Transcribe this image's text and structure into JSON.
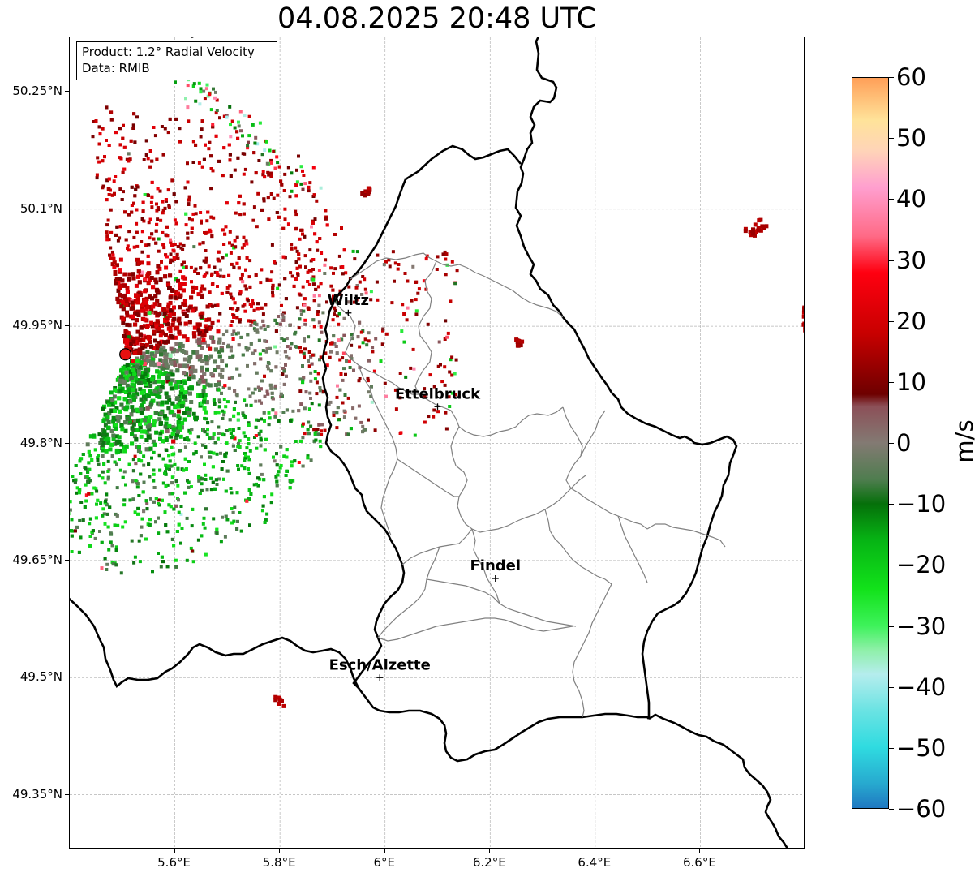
{
  "title": "04.08.2025 20:48 UTC",
  "info": {
    "product": "Product: 1.2° Radial Velocity",
    "data": "Data: RMIB"
  },
  "map_extent": {
    "lon": [
      5.4,
      6.8
    ],
    "lat": [
      49.28,
      50.32
    ]
  },
  "lat_ticks": [
    {
      "value": 50.25,
      "label": "50.25°N"
    },
    {
      "value": 50.1,
      "label": "50.1°N"
    },
    {
      "value": 49.95,
      "label": "49.95°N"
    },
    {
      "value": 49.8,
      "label": "49.8°N"
    },
    {
      "value": 49.65,
      "label": "49.65°N"
    },
    {
      "value": 49.5,
      "label": "49.5°N"
    },
    {
      "value": 49.35,
      "label": "49.35°N"
    }
  ],
  "lon_ticks": [
    {
      "value": 5.6,
      "label": "5.6°E"
    },
    {
      "value": 5.8,
      "label": "5.8°E"
    },
    {
      "value": 6.0,
      "label": "6°E"
    },
    {
      "value": 6.2,
      "label": "6.2°E"
    },
    {
      "value": 6.4,
      "label": "6.4°E"
    },
    {
      "value": 6.6,
      "label": "6.6°E"
    }
  ],
  "cities": [
    {
      "name": "Wiltz",
      "lon": 5.93,
      "lat": 49.967
    },
    {
      "name": "Ettelbruck",
      "lon": 6.1,
      "lat": 49.847
    },
    {
      "name": "Findel",
      "lon": 6.21,
      "lat": 49.627
    },
    {
      "name": "Esch/Alzette",
      "lon": 5.99,
      "lat": 49.5
    }
  ],
  "radar_site": {
    "lon": 5.506,
    "lat": 49.914
  },
  "colorbar": {
    "unit": "m/s",
    "min": -60,
    "max": 60,
    "ticks": [
      {
        "value": 60,
        "label": "60"
      },
      {
        "value": 50,
        "label": "50"
      },
      {
        "value": 40,
        "label": "40"
      },
      {
        "value": 30,
        "label": "30"
      },
      {
        "value": 20,
        "label": "20"
      },
      {
        "value": 10,
        "label": "10"
      },
      {
        "value": 0,
        "label": "0"
      },
      {
        "value": -10,
        "label": "−10"
      },
      {
        "value": -20,
        "label": "−20"
      },
      {
        "value": -30,
        "label": "−30"
      },
      {
        "value": -40,
        "label": "−40"
      },
      {
        "value": -50,
        "label": "−50"
      },
      {
        "value": -60,
        "label": "−60"
      }
    ],
    "stops": [
      {
        "value": -60,
        "color": "#1f78c1"
      },
      {
        "value": -56,
        "color": "#27a9cf"
      },
      {
        "value": -50,
        "color": "#2fdbe0"
      },
      {
        "value": -44,
        "color": "#6ae3e3"
      },
      {
        "value": -38,
        "color": "#b5eded"
      },
      {
        "value": -34,
        "color": "#8ef0a8"
      },
      {
        "value": -30,
        "color": "#3df25a"
      },
      {
        "value": -24,
        "color": "#12e21a"
      },
      {
        "value": -16,
        "color": "#06b414"
      },
      {
        "value": -10,
        "color": "#05700a"
      },
      {
        "value": -6,
        "color": "#4f7d4f"
      },
      {
        "value": 0,
        "color": "#837a73"
      },
      {
        "value": 6,
        "color": "#8c5058"
      },
      {
        "value": 8,
        "color": "#6e0000"
      },
      {
        "value": 18,
        "color": "#c80000"
      },
      {
        "value": 28,
        "color": "#ff0010"
      },
      {
        "value": 34,
        "color": "#ff6a86"
      },
      {
        "value": 42,
        "color": "#ff9fcf"
      },
      {
        "value": 48,
        "color": "#ffd4b8"
      },
      {
        "value": 53,
        "color": "#ffe39a"
      },
      {
        "value": 60,
        "color": "#ff9f58"
      }
    ]
  },
  "colors": {
    "border": "#000000",
    "canton": "#808080",
    "grid": "#b4b4b4",
    "radar_marker": "#e81010"
  }
}
